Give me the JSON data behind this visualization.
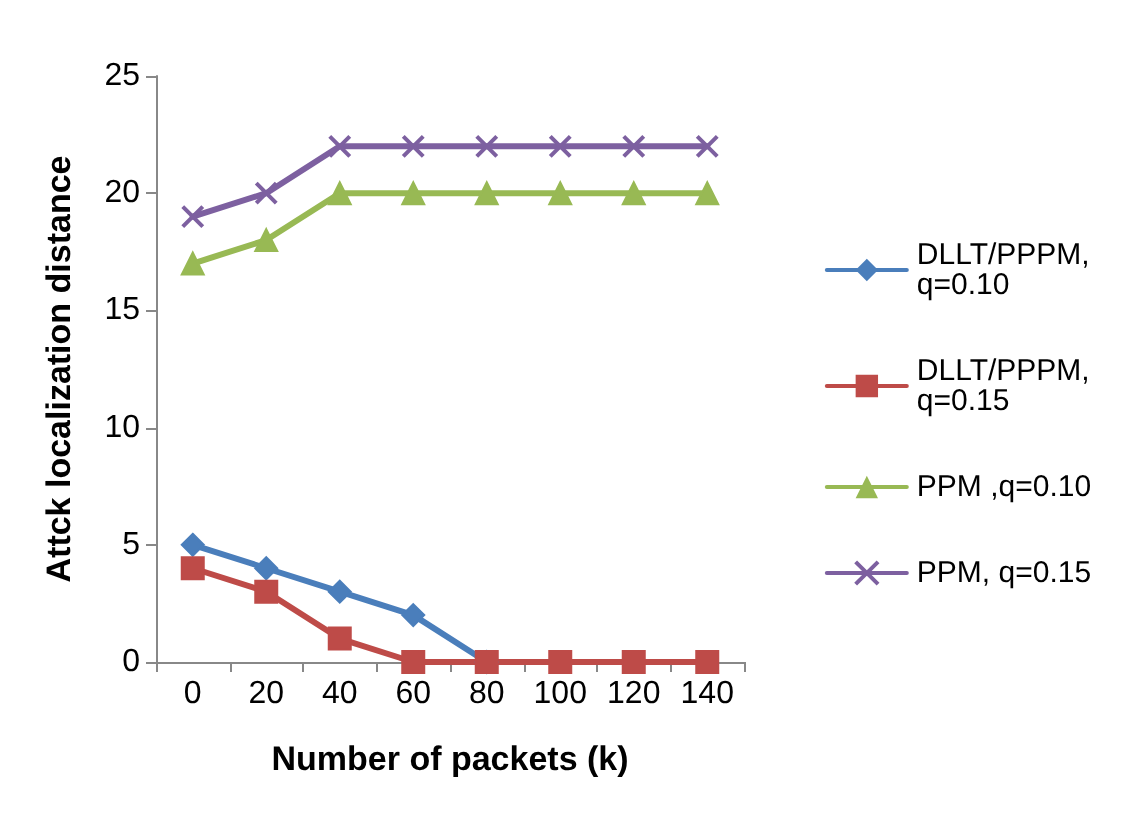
{
  "chart_data": {
    "type": "line",
    "xlabel": "Number of packets (k)",
    "ylabel": "Attck localization distance",
    "categories": [
      "0",
      "20",
      "40",
      "60",
      "80",
      "100",
      "120",
      "140"
    ],
    "series": [
      {
        "name": "DLLT/PPPM, q=0.10",
        "color": "#4a7ebb",
        "marker": "diamond",
        "values": [
          5,
          4,
          3,
          2,
          0,
          null,
          null,
          null
        ]
      },
      {
        "name": "DLLT/PPPM, q=0.15",
        "color": "#be4b48",
        "marker": "square",
        "values": [
          4,
          3,
          1,
          0,
          0,
          0,
          0,
          0
        ]
      },
      {
        "name": "PPM ,q=0.10",
        "color": "#98b954",
        "marker": "triangle",
        "values": [
          17,
          18,
          20,
          20,
          20,
          20,
          20,
          20
        ]
      },
      {
        "name": "PPM, q=0.15",
        "color": "#7d60a0",
        "marker": "cross",
        "values": [
          19,
          20,
          22,
          22,
          22,
          22,
          22,
          22
        ]
      }
    ],
    "ylim": [
      0,
      25
    ],
    "yticks": [
      0,
      5,
      10,
      15,
      20,
      25
    ],
    "grid": false,
    "legend": "right",
    "line_style": "solid"
  }
}
